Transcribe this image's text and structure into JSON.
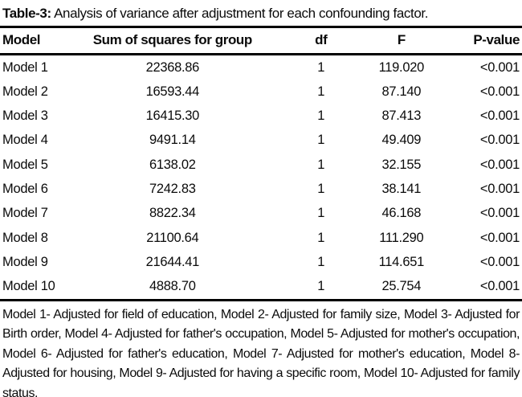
{
  "caption": {
    "label": "Table-3:",
    "text": "Analysis of variance after adjustment for each confounding factor."
  },
  "table": {
    "columns": [
      "Model",
      "Sum of squares for group",
      "df",
      "F",
      "P-value"
    ],
    "rows": [
      {
        "model": "Model 1",
        "ss": "22368.86",
        "df": "1",
        "f": "119.020",
        "p": "<0.001"
      },
      {
        "model": "Model 2",
        "ss": "16593.44",
        "df": "1",
        "f": "87.140",
        "p": "<0.001"
      },
      {
        "model": "Model 3",
        "ss": "16415.30",
        "df": "1",
        "f": "87.413",
        "p": "<0.001"
      },
      {
        "model": "Model 4",
        "ss": "9491.14",
        "df": "1",
        "f": "49.409",
        "p": "<0.001"
      },
      {
        "model": "Model 5",
        "ss": "6138.02",
        "df": "1",
        "f": "32.155",
        "p": "<0.001"
      },
      {
        "model": "Model 6",
        "ss": "7242.83",
        "df": "1",
        "f": "38.141",
        "p": "<0.001"
      },
      {
        "model": "Model 7",
        "ss": "8822.34",
        "df": "1",
        "f": "46.168",
        "p": "<0.001"
      },
      {
        "model": "Model 8",
        "ss": "21100.64",
        "df": "1",
        "f": "111.290",
        "p": "<0.001"
      },
      {
        "model": "Model 9",
        "ss": "21644.41",
        "df": "1",
        "f": "114.651",
        "p": "<0.001"
      },
      {
        "model": "Model 10",
        "ss": "4888.70",
        "df": "1",
        "f": "25.754",
        "p": "<0.001"
      }
    ]
  },
  "footnote": "Model 1- Adjusted for field of education, Model 2- Adjusted for family size, Model 3- Adjusted for Birth order, Model 4- Adjusted for father's occupation, Model 5- Adjusted for mother's occupation, Model 6- Adjusted for father's education, Model 7- Adjusted for mother's education, Model 8- Adjusted for housing, Model 9- Adjusted for having a specific room, Model 10- Adjusted for family status.",
  "colors": {
    "background": "#ffffff",
    "text": "#0b0b0b",
    "rule": "#000000"
  }
}
